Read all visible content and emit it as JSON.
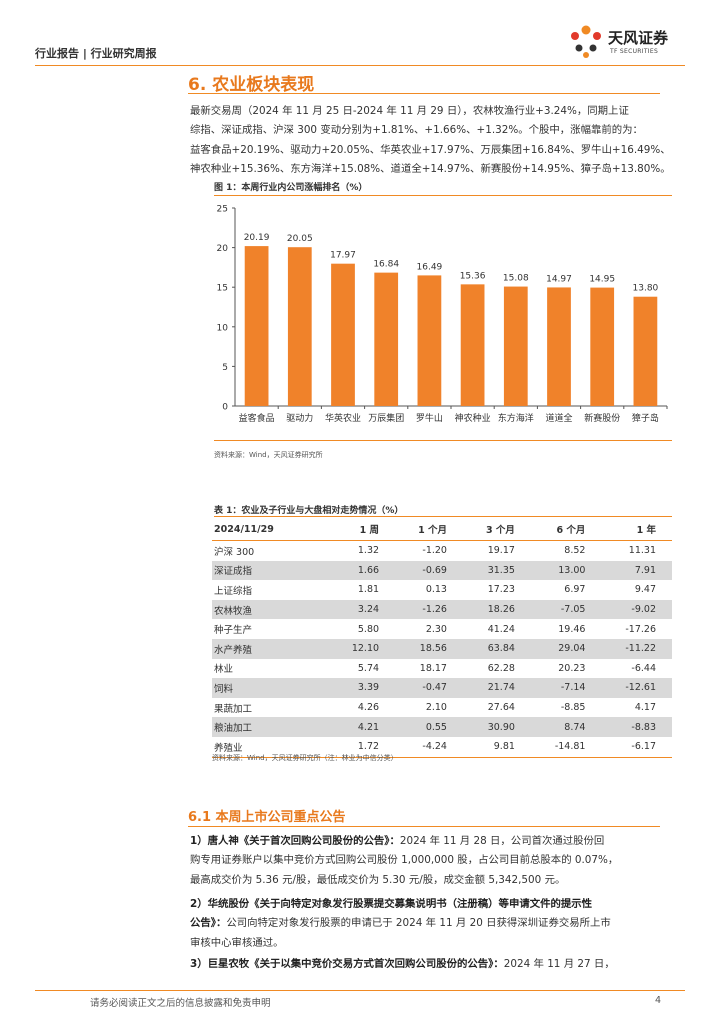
{
  "header": {
    "left": "行业报告 | 行业研究周报",
    "logo_cn": "天风证券",
    "logo_en": "TF SECURITIES",
    "accent": "#f08a24"
  },
  "section": {
    "title": "6. 农业板块表现",
    "paragraph": [
      "最新交易周（2024 年 11 月 25 日-2024 年 11 月 29 日），农林牧渔行业+3.24%，同期上证",
      "综指、深证成指、沪深 300 变动分别为+1.81%、+1.66%、+1.32%。个股中，涨幅靠前的为：",
      "益客食品+20.19%、驱动力+20.05%、华英农业+17.97%、万辰集团+16.84%、罗牛山+16.49%、",
      "神农种业+15.36%、东方海洋+15.08%、道道全+14.97%、新赛股份+14.95%、獐子岛+13.80%。"
    ]
  },
  "figure": {
    "caption": "图 1：本周行业内公司涨幅排名（%）",
    "source": "资料来源：Wind，天风证券研究所"
  },
  "chart_data": {
    "type": "bar",
    "title": "图 1：本周行业内公司涨幅排名（%）",
    "categories": [
      "益客食品",
      "驱动力",
      "华英农业",
      "万辰集团",
      "罗牛山",
      "神农种业",
      "东方海洋",
      "道道全",
      "新赛股份",
      "獐子岛"
    ],
    "values": [
      20.19,
      20.05,
      17.97,
      16.84,
      16.49,
      15.36,
      15.08,
      14.97,
      14.95,
      13.8
    ],
    "labels": [
      "20.19",
      "20.05",
      "17.97",
      "16.84",
      "16.49",
      "15.36",
      "15.08",
      "14.97",
      "14.95",
      "13.80"
    ],
    "yticks": [
      "0",
      "5",
      "10",
      "15",
      "20",
      "25"
    ],
    "ylim": [
      0,
      25
    ],
    "xlabel": "",
    "ylabel": "",
    "bar_color": "#f0822a",
    "grid": false
  },
  "table": {
    "caption": "表 1：农业及子行业与大盘相对走势情况（%）",
    "headers": [
      "2024/11/29",
      "1 周",
      "1 个月",
      "3 个月",
      "6 个月",
      "1 年"
    ],
    "rows": [
      [
        "沪深 300",
        "1.32",
        "-1.20",
        "19.17",
        "8.52",
        "11.31"
      ],
      [
        "深证成指",
        "1.66",
        "-0.69",
        "31.35",
        "13.00",
        "7.91"
      ],
      [
        "上证综指",
        "1.81",
        "0.13",
        "17.23",
        "6.97",
        "9.47"
      ],
      [
        "农林牧渔",
        "3.24",
        "-1.26",
        "18.26",
        "-7.05",
        "-9.02"
      ],
      [
        "种子生产",
        "5.80",
        "2.30",
        "41.24",
        "19.46",
        "-17.26"
      ],
      [
        "水产养殖",
        "12.10",
        "18.56",
        "63.84",
        "29.04",
        "-11.22"
      ],
      [
        "林业",
        "5.74",
        "18.17",
        "62.28",
        "20.23",
        "-6.44"
      ],
      [
        "饲料",
        "3.39",
        "-0.47",
        "21.74",
        "-7.14",
        "-12.61"
      ],
      [
        "果蔬加工",
        "4.26",
        "2.10",
        "27.64",
        "-8.85",
        "4.17"
      ],
      [
        "粮油加工",
        "4.21",
        "0.55",
        "30.90",
        "8.74",
        "-8.83"
      ],
      [
        "养殖业",
        "1.72",
        "-4.24",
        "9.81",
        "-14.81",
        "-6.17"
      ]
    ],
    "source": "资料来源：Wind，天风证券研究所（注：林业为中信分类）"
  },
  "announcements": {
    "title": "6.1 本周上市公司重点公告",
    "items": [
      {
        "bold": "1）唐人神《关于首次回购公司股份的公告》：",
        "lines": [
          "2024 年 11 月 28 日，公司首次通过股份回",
          "购专用证券账户以集中竞价方式回购公司股份 1,000,000 股，占公司目前总股本的 0.07%，",
          "最高成交价为 5.36 元/股，最低成交价为 5.30 元/股，成交金额 5,342,500 元。"
        ]
      },
      {
        "bold": "2）华统股份《关于向特定对象发行股票提交募集说明书（注册稿）等申请文件的提示性",
        "bold2": "公告》：",
        "lines": [
          "公司向特定对象发行股票的申请已于 2024 年 11 月 20 日获得深圳证券交易所上市",
          "审核中心审核通过。"
        ]
      },
      {
        "bold": "3）巨星农牧《关于以集中竞价交易方式首次回购公司股份的公告》：",
        "lines": [
          "2024 年 11 月 27 日，"
        ]
      }
    ]
  },
  "footer": {
    "text": "请务必阅读正文之后的信息披露和免责申明",
    "page": "4"
  }
}
